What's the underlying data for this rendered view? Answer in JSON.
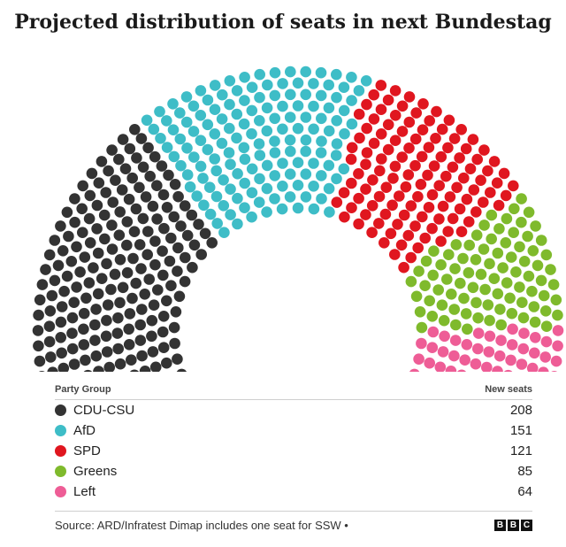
{
  "chart_data": {
    "type": "parliament",
    "title": "Projected distribution of seats in next Bundestag",
    "series": [
      {
        "name": "CDU-CSU",
        "value": 208,
        "color": "#333333"
      },
      {
        "name": "AfD",
        "value": 151,
        "color": "#3ebdc7"
      },
      {
        "name": "SPD",
        "value": 121,
        "color": "#e0161f"
      },
      {
        "name": "Greens",
        "value": 85,
        "color": "#7fba2c"
      },
      {
        "name": "Left",
        "value": 64,
        "color": "#ee5d96"
      }
    ],
    "other_seats": 1,
    "other_color": "#ffffff"
  },
  "legend": {
    "header_left": "Party Group",
    "header_right": "New seats",
    "rows": [
      {
        "party": "CDU-CSU",
        "seats": "208",
        "color": "#333333"
      },
      {
        "party": "AfD",
        "seats": "151",
        "color": "#3ebdc7"
      },
      {
        "party": "SPD",
        "seats": "121",
        "color": "#e0161f"
      },
      {
        "party": "Greens",
        "seats": "85",
        "color": "#7fba2c"
      },
      {
        "party": "Left",
        "seats": "64",
        "color": "#ee5d96"
      }
    ]
  },
  "footer": {
    "source": "Source: ARD/Infratest Dimap includes one seat for SSW •",
    "logo": [
      "B",
      "B",
      "C"
    ]
  }
}
